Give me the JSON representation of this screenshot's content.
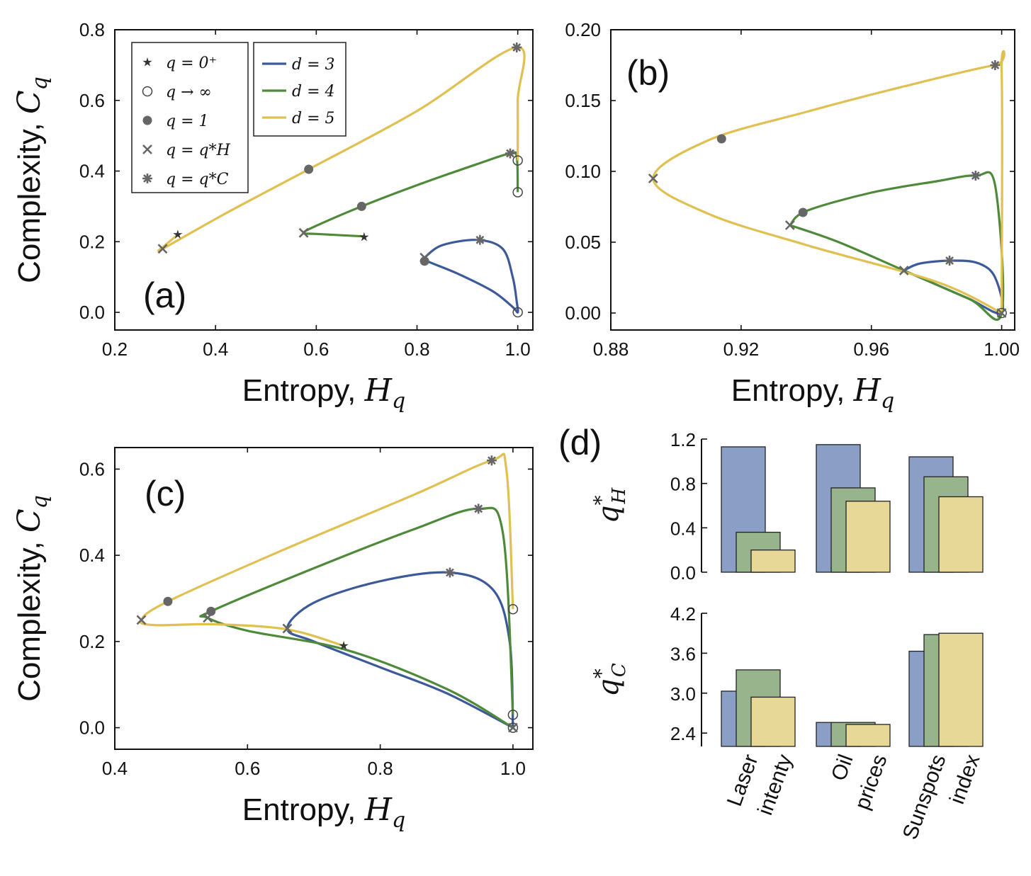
{
  "colors": {
    "d3": "#3c5a9a",
    "d4": "#4e8a3a",
    "d5": "#e0c050",
    "marker": "#666666",
    "bar_blue": "#8a9ec6",
    "bar_green": "#98b48c",
    "bar_yellow": "#e8d898"
  },
  "chart_data": [
    {
      "panel": "(a)",
      "type": "line",
      "xlabel": "Entropy,",
      "xlabel_math": "H",
      "xlabel_sub": "q",
      "ylabel": "Complexity,",
      "ylabel_math": "C",
      "ylabel_sub": "q",
      "xlim": [
        0.2,
        1.03
      ],
      "ylim": [
        -0.05,
        0.8
      ],
      "xticks": [
        "0.2",
        "0.4",
        "0.6",
        "0.8",
        "1.0"
      ],
      "xtick_values": [
        0.2,
        0.4,
        0.6,
        0.8,
        1.0
      ],
      "yticks": [
        "0.0",
        "0.2",
        "0.4",
        "0.6",
        "0.8"
      ],
      "ytick_values": [
        0.0,
        0.2,
        0.4,
        0.6,
        0.8
      ],
      "legend_markers": [
        {
          "symbol": "★",
          "text": "q = 0⁺"
        },
        {
          "symbol": "○",
          "text": "q → ∞"
        },
        {
          "symbol": "●",
          "text": "q = 1"
        },
        {
          "symbol": "×",
          "text": "q = q*H"
        },
        {
          "symbol": "✳",
          "text": "q = q*C"
        }
      ],
      "legend_lines": [
        {
          "series": "d3",
          "text": "d = 3"
        },
        {
          "series": "d4",
          "text": "d = 4"
        },
        {
          "series": "d5",
          "text": "d = 5"
        }
      ],
      "series": [
        {
          "name": "d = 3",
          "key": "d3",
          "x": [
            0.815,
            0.85,
            0.92,
            0.97,
            0.99,
            0.998,
            1.0,
            0.99,
            0.95,
            0.88,
            0.82,
            0.815
          ],
          "y": [
            0.155,
            0.19,
            0.205,
            0.18,
            0.1,
            0.03,
            0.0,
            0.015,
            0.06,
            0.11,
            0.145,
            0.155
          ]
        },
        {
          "name": "d = 4",
          "key": "d4",
          "x": [
            0.695,
            0.6,
            0.575,
            0.6,
            0.69,
            0.8,
            0.92,
            0.985,
            0.998,
            1.0
          ],
          "y": [
            0.215,
            0.222,
            0.225,
            0.245,
            0.3,
            0.36,
            0.42,
            0.45,
            0.44,
            0.34
          ]
        },
        {
          "name": "d = 5",
          "key": "d5",
          "x": [
            0.325,
            0.3,
            0.295,
            0.42,
            0.585,
            0.8,
            0.998,
            1.0,
            1.0
          ],
          "y": [
            0.22,
            0.19,
            0.18,
            0.28,
            0.405,
            0.57,
            0.75,
            0.6,
            0.43
          ]
        }
      ],
      "markers": [
        {
          "type": "star",
          "x": 0.325,
          "y": 0.22
        },
        {
          "type": "star",
          "x": 0.695,
          "y": 0.213
        },
        {
          "type": "x",
          "x": 0.295,
          "y": 0.18
        },
        {
          "type": "x",
          "x": 0.575,
          "y": 0.225
        },
        {
          "type": "x",
          "x": 0.815,
          "y": 0.155
        },
        {
          "type": "dot",
          "x": 0.585,
          "y": 0.405
        },
        {
          "type": "dot",
          "x": 0.69,
          "y": 0.3
        },
        {
          "type": "dot",
          "x": 0.815,
          "y": 0.145
        },
        {
          "type": "ast",
          "x": 0.998,
          "y": 0.75
        },
        {
          "type": "ast",
          "x": 0.985,
          "y": 0.45
        },
        {
          "type": "ast",
          "x": 0.925,
          "y": 0.205
        },
        {
          "type": "circle",
          "x": 1.0,
          "y": 0.43
        },
        {
          "type": "circle",
          "x": 1.0,
          "y": 0.34
        },
        {
          "type": "circle",
          "x": 1.0,
          "y": 0.0
        }
      ]
    },
    {
      "panel": "(b)",
      "type": "line",
      "xlabel": "Entropy,",
      "xlabel_math": "H",
      "xlabel_sub": "q",
      "xlim": [
        0.88,
        1.004
      ],
      "ylim": [
        -0.012,
        0.2
      ],
      "xticks": [
        "0.88",
        "0.92",
        "0.96",
        "1.00"
      ],
      "xtick_values": [
        0.88,
        0.92,
        0.96,
        1.0
      ],
      "yticks": [
        "0.00",
        "0.05",
        "0.10",
        "0.15",
        "0.20"
      ],
      "ytick_values": [
        0.0,
        0.05,
        0.1,
        0.15,
        0.2
      ],
      "series": [
        {
          "name": "d = 3",
          "key": "d3",
          "x": [
            0.97,
            0.975,
            0.985,
            0.993,
            0.998,
            1.0,
            0.99,
            0.98,
            0.97
          ],
          "y": [
            0.03,
            0.035,
            0.037,
            0.035,
            0.025,
            0.0,
            0.01,
            0.02,
            0.03
          ]
        },
        {
          "name": "d = 4",
          "key": "d4",
          "x": [
            0.935,
            0.94,
            0.96,
            0.98,
            0.992,
            0.998,
            1.0,
            0.99,
            0.97,
            0.95,
            0.935
          ],
          "y": [
            0.062,
            0.072,
            0.085,
            0.093,
            0.097,
            0.09,
            0.0,
            0.01,
            0.03,
            0.05,
            0.062
          ]
        },
        {
          "name": "d = 5",
          "key": "d5",
          "x": [
            1.0,
            0.98,
            0.94,
            0.91,
            0.893,
            0.91,
            0.94,
            0.97,
            0.998,
            1.0,
            1.0
          ],
          "y": [
            0.0,
            0.022,
            0.048,
            0.07,
            0.095,
            0.122,
            0.142,
            0.16,
            0.175,
            0.17,
            0.0
          ]
        }
      ],
      "markers": [
        {
          "type": "x",
          "x": 0.893,
          "y": 0.095
        },
        {
          "type": "x",
          "x": 0.935,
          "y": 0.062
        },
        {
          "type": "x",
          "x": 0.97,
          "y": 0.03
        },
        {
          "type": "dot",
          "x": 0.914,
          "y": 0.123
        },
        {
          "type": "dot",
          "x": 0.939,
          "y": 0.071
        },
        {
          "type": "ast",
          "x": 0.998,
          "y": 0.175
        },
        {
          "type": "ast",
          "x": 0.992,
          "y": 0.097
        },
        {
          "type": "ast",
          "x": 0.984,
          "y": 0.037
        },
        {
          "type": "circle",
          "x": 1.0,
          "y": 0.0
        },
        {
          "type": "x",
          "x": 1.0,
          "y": 0.0
        }
      ]
    },
    {
      "panel": "(c)",
      "type": "line",
      "xlabel": "Entropy,",
      "xlabel_math": "H",
      "xlabel_sub": "q",
      "ylabel": "Complexity,",
      "ylabel_math": "C",
      "ylabel_sub": "q",
      "xlim": [
        0.4,
        1.03
      ],
      "ylim": [
        -0.05,
        0.65
      ],
      "xticks": [
        "0.4",
        "0.6",
        "0.8",
        "1.0"
      ],
      "xtick_values": [
        0.4,
        0.6,
        0.8,
        1.0
      ],
      "yticks": [
        "0.0",
        "0.2",
        "0.4",
        "0.6"
      ],
      "ytick_values": [
        0.0,
        0.2,
        0.4,
        0.6
      ],
      "series": [
        {
          "name": "d = 3",
          "key": "d3",
          "x": [
            1.0,
            0.9,
            0.8,
            0.7,
            0.66,
            0.7,
            0.8,
            0.905,
            0.97,
            0.995,
            1.0
          ],
          "y": [
            0.0,
            0.08,
            0.14,
            0.2,
            0.23,
            0.29,
            0.34,
            0.36,
            0.32,
            0.2,
            0.0
          ]
        },
        {
          "name": "d = 4",
          "key": "d4",
          "x": [
            1.0,
            0.9,
            0.75,
            0.6,
            0.54,
            0.545,
            0.7,
            0.85,
            0.948,
            0.985,
            1.0
          ],
          "y": [
            0.0,
            0.09,
            0.18,
            0.225,
            0.255,
            0.27,
            0.37,
            0.46,
            0.508,
            0.45,
            0.03
          ]
        },
        {
          "name": "d = 5",
          "key": "d5",
          "x": [
            0.745,
            0.66,
            0.55,
            0.46,
            0.44,
            0.48,
            0.65,
            0.85,
            0.968,
            0.99,
            1.0
          ],
          "y": [
            0.19,
            0.228,
            0.24,
            0.238,
            0.25,
            0.293,
            0.41,
            0.54,
            0.62,
            0.6,
            0.275
          ]
        }
      ],
      "markers": [
        {
          "type": "star",
          "x": 0.745,
          "y": 0.19
        },
        {
          "type": "x",
          "x": 0.44,
          "y": 0.25
        },
        {
          "type": "x",
          "x": 0.54,
          "y": 0.255
        },
        {
          "type": "x",
          "x": 0.66,
          "y": 0.23
        },
        {
          "type": "dot",
          "x": 0.48,
          "y": 0.293
        },
        {
          "type": "dot",
          "x": 0.545,
          "y": 0.27
        },
        {
          "type": "ast",
          "x": 0.968,
          "y": 0.62
        },
        {
          "type": "ast",
          "x": 0.948,
          "y": 0.508
        },
        {
          "type": "ast",
          "x": 0.905,
          "y": 0.36
        },
        {
          "type": "circle",
          "x": 1.0,
          "y": 0.275
        },
        {
          "type": "circle",
          "x": 1.0,
          "y": 0.03
        },
        {
          "type": "circle",
          "x": 1.0,
          "y": 0.0
        },
        {
          "type": "x",
          "x": 1.0,
          "y": 0.0
        }
      ]
    },
    {
      "panel": "(d)",
      "type": "bar",
      "categories": [
        [
          "Laser",
          "intenty"
        ],
        [
          "Oil",
          "prices"
        ],
        [
          "Sunspots",
          "index"
        ]
      ],
      "top": {
        "ylabel": "q",
        "ylabel_sup": "*",
        "ylabel_sub": "H",
        "ylim": [
          0.0,
          1.2
        ],
        "yticks": [
          "0.0",
          "0.4",
          "0.8",
          "1.2"
        ],
        "ytick_values": [
          0.0,
          0.4,
          0.8,
          1.2
        ],
        "series": [
          {
            "name": "d = 3",
            "key": "bar_blue",
            "values": [
              1.13,
              1.15,
              1.04
            ]
          },
          {
            "name": "d = 4",
            "key": "bar_green",
            "values": [
              0.36,
              0.76,
              0.86
            ]
          },
          {
            "name": "d = 5",
            "key": "bar_yellow",
            "values": [
              0.2,
              0.64,
              0.68
            ]
          }
        ]
      },
      "bottom": {
        "ylabel": "q",
        "ylabel_sup": "*",
        "ylabel_sub": "C",
        "ylim": [
          2.2,
          4.2
        ],
        "yticks": [
          "2.4",
          "3.0",
          "3.6",
          "4.2"
        ],
        "ytick_values": [
          2.4,
          3.0,
          3.6,
          4.2
        ],
        "series": [
          {
            "name": "d = 3",
            "key": "bar_blue",
            "values": [
              3.03,
              2.56,
              3.63
            ]
          },
          {
            "name": "d = 4",
            "key": "bar_green",
            "values": [
              3.35,
              2.56,
              3.88
            ]
          },
          {
            "name": "d = 5",
            "key": "bar_yellow",
            "values": [
              2.94,
              2.53,
              3.9
            ]
          }
        ]
      }
    }
  ]
}
